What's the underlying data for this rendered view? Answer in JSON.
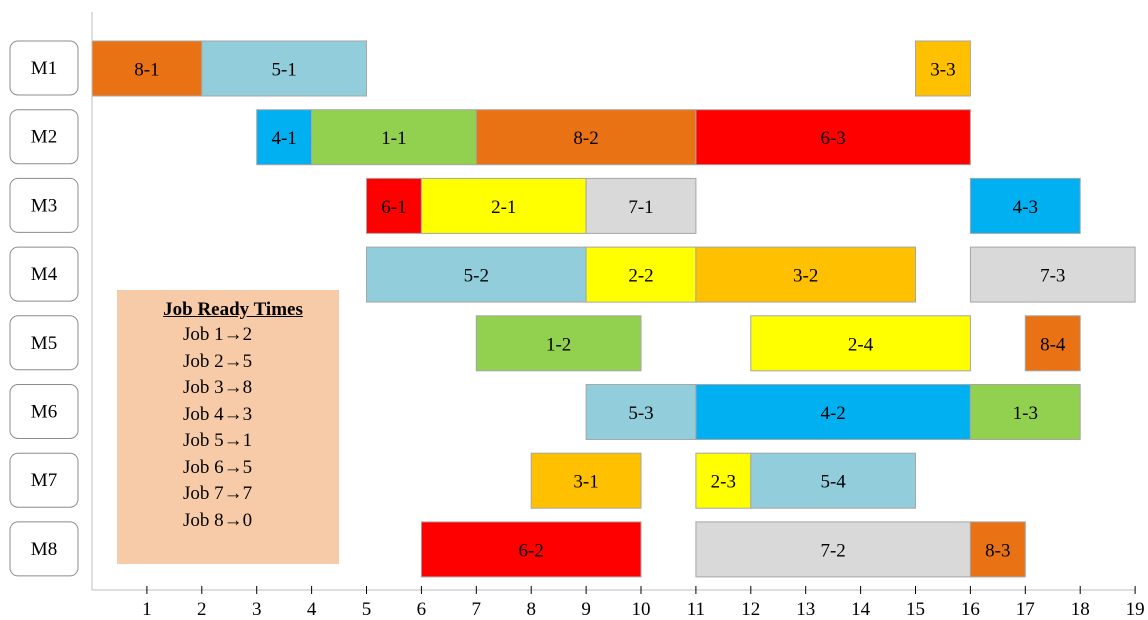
{
  "chart_data": {
    "type": "gantt",
    "machines": [
      "M1",
      "M2",
      "M3",
      "M4",
      "M5",
      "M6",
      "M7",
      "M8"
    ],
    "x_ticks": [
      1,
      2,
      3,
      4,
      5,
      6,
      7,
      8,
      9,
      10,
      11,
      12,
      13,
      14,
      15,
      16,
      17,
      18,
      19
    ],
    "xlim": [
      0,
      19
    ],
    "tasks": [
      {
        "machine": "M1",
        "label": "8-1",
        "start": 0,
        "end": 2,
        "job": 8
      },
      {
        "machine": "M1",
        "label": "5-1",
        "start": 2,
        "end": 5,
        "job": 5
      },
      {
        "machine": "M1",
        "label": "3-3",
        "start": 15,
        "end": 16,
        "job": 3
      },
      {
        "machine": "M2",
        "label": "4-1",
        "start": 3,
        "end": 4,
        "job": 4
      },
      {
        "machine": "M2",
        "label": "1-1",
        "start": 4,
        "end": 7,
        "job": 1
      },
      {
        "machine": "M2",
        "label": "8-2",
        "start": 7,
        "end": 11,
        "job": 8
      },
      {
        "machine": "M2",
        "label": "6-3",
        "start": 11,
        "end": 16,
        "job": 6
      },
      {
        "machine": "M3",
        "label": "6-1",
        "start": 5,
        "end": 6,
        "job": 6
      },
      {
        "machine": "M3",
        "label": "2-1",
        "start": 6,
        "end": 9,
        "job": 2
      },
      {
        "machine": "M3",
        "label": "7-1",
        "start": 9,
        "end": 11,
        "job": 7
      },
      {
        "machine": "M3",
        "label": "4-3",
        "start": 16,
        "end": 18,
        "job": 4
      },
      {
        "machine": "M4",
        "label": "5-2",
        "start": 5,
        "end": 9,
        "job": 5
      },
      {
        "machine": "M4",
        "label": "2-2",
        "start": 9,
        "end": 11,
        "job": 2
      },
      {
        "machine": "M4",
        "label": "3-2",
        "start": 11,
        "end": 15,
        "job": 3
      },
      {
        "machine": "M4",
        "label": "7-3",
        "start": 16,
        "end": 19,
        "job": 7
      },
      {
        "machine": "M5",
        "label": "1-2",
        "start": 7,
        "end": 10,
        "job": 1
      },
      {
        "machine": "M5",
        "label": "2-4",
        "start": 12,
        "end": 16,
        "job": 2
      },
      {
        "machine": "M5",
        "label": "8-4",
        "start": 17,
        "end": 18,
        "job": 8
      },
      {
        "machine": "M6",
        "label": "5-3",
        "start": 9,
        "end": 11,
        "job": 5
      },
      {
        "machine": "M6",
        "label": "4-2",
        "start": 11,
        "end": 16,
        "job": 4
      },
      {
        "machine": "M6",
        "label": "1-3",
        "start": 16,
        "end": 18,
        "job": 1
      },
      {
        "machine": "M7",
        "label": "3-1",
        "start": 8,
        "end": 10,
        "job": 3
      },
      {
        "machine": "M7",
        "label": "2-3",
        "start": 11,
        "end": 12,
        "job": 2
      },
      {
        "machine": "M7",
        "label": "5-4",
        "start": 12,
        "end": 15,
        "job": 5
      },
      {
        "machine": "M8",
        "label": "6-2",
        "start": 6,
        "end": 10,
        "job": 6
      },
      {
        "machine": "M8",
        "label": "7-2",
        "start": 11,
        "end": 16,
        "job": 7
      },
      {
        "machine": "M8",
        "label": "8-3",
        "start": 16,
        "end": 17,
        "job": 8
      }
    ],
    "job_colors": {
      "1": "#92d050",
      "2": "#ffff00",
      "3": "#ffc000",
      "4": "#00b0f0",
      "5": "#92cddc",
      "6": "#ff0000",
      "7": "#d9d9d9",
      "8": "#e97214"
    },
    "grid": false
  },
  "ready_times": {
    "title": "Job Ready Times",
    "background": "#f8cba8",
    "items": [
      {
        "label": "Job 1→2",
        "job": 1,
        "ready": 2
      },
      {
        "label": "Job 2→5",
        "job": 2,
        "ready": 5
      },
      {
        "label": "Job 3→8",
        "job": 3,
        "ready": 8
      },
      {
        "label": "Job 4→3",
        "job": 4,
        "ready": 3
      },
      {
        "label": "Job 5→1",
        "job": 5,
        "ready": 1
      },
      {
        "label": "Job 6→5",
        "job": 6,
        "ready": 5
      },
      {
        "label": "Job 7→7",
        "job": 7,
        "ready": 7
      },
      {
        "label": "Job 8→0",
        "job": 8,
        "ready": 0
      }
    ]
  }
}
